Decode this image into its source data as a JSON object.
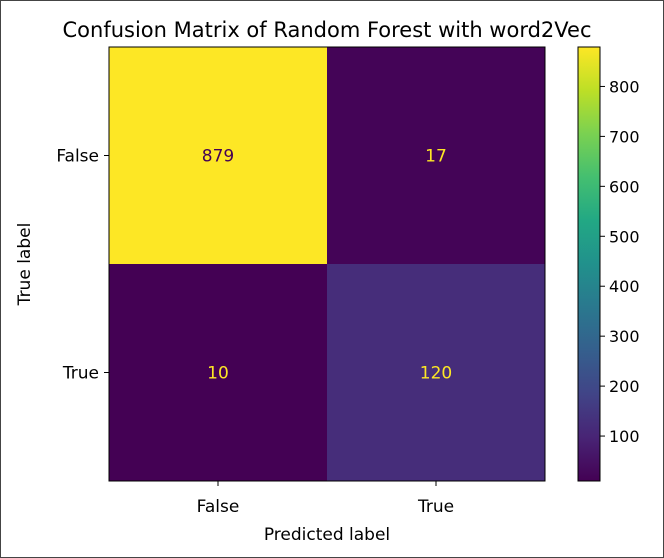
{
  "chart_data": {
    "type": "heatmap",
    "title": "Confusion Matrix of Random Forest with word2Vec",
    "xlabel": "Predicted label",
    "ylabel": "True label",
    "x_categories": [
      "False",
      "True"
    ],
    "y_categories": [
      "False",
      "True"
    ],
    "values": [
      [
        879,
        17
      ],
      [
        10,
        120
      ]
    ],
    "colormap": "viridis",
    "colorbar": {
      "vmin": 10,
      "vmax": 879,
      "ticks": [
        100,
        200,
        300,
        400,
        500,
        600,
        700,
        800
      ],
      "tick_labels": [
        "100",
        "200",
        "300",
        "400",
        "500",
        "600",
        "700",
        "800"
      ]
    },
    "text_colors": {
      "on_dark": "#fde725",
      "on_light": "#440154"
    },
    "grid": false
  }
}
